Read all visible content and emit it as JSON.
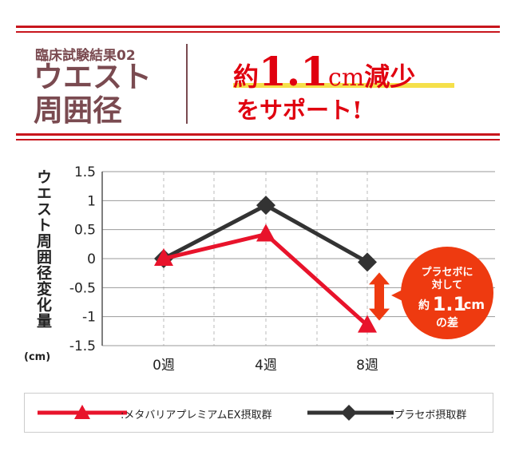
{
  "header": {
    "subtitle": "臨床試験結果02",
    "title_line1": "ウエスト",
    "title_line2": "周囲径",
    "headline_pre": "約",
    "headline_num": "1.1",
    "headline_unit": "cm",
    "headline_post": "減少",
    "headline_line2": "をサポート!"
  },
  "callout": {
    "line1": "プラセボに",
    "line2": "対して",
    "pre": "約",
    "num": "1.1",
    "unit": "cm",
    "line4": "の差",
    "color": "#ee3a10"
  },
  "chart_data": {
    "type": "line",
    "ylabel": "ウエスト周囲径変化量",
    "yunit": "(cm)",
    "categories": [
      "0週",
      "4週",
      "8週"
    ],
    "ylim": [
      -1.5,
      1.5
    ],
    "yticks": [
      "1.5",
      "1",
      "0.5",
      "0",
      "-0.5",
      "-1",
      "-1.5"
    ],
    "grid": true,
    "legend_position": "bottom",
    "series": [
      {
        "name": ":メタバリアプレミアムEX摂取群",
        "values": [
          0,
          0.42,
          -1.15
        ],
        "color": "#e8132b",
        "marker": "triangle"
      },
      {
        "name": ":プラセボ摂取群",
        "values": [
          0,
          0.92,
          -0.06
        ],
        "color": "#333333",
        "marker": "diamond"
      }
    ]
  }
}
